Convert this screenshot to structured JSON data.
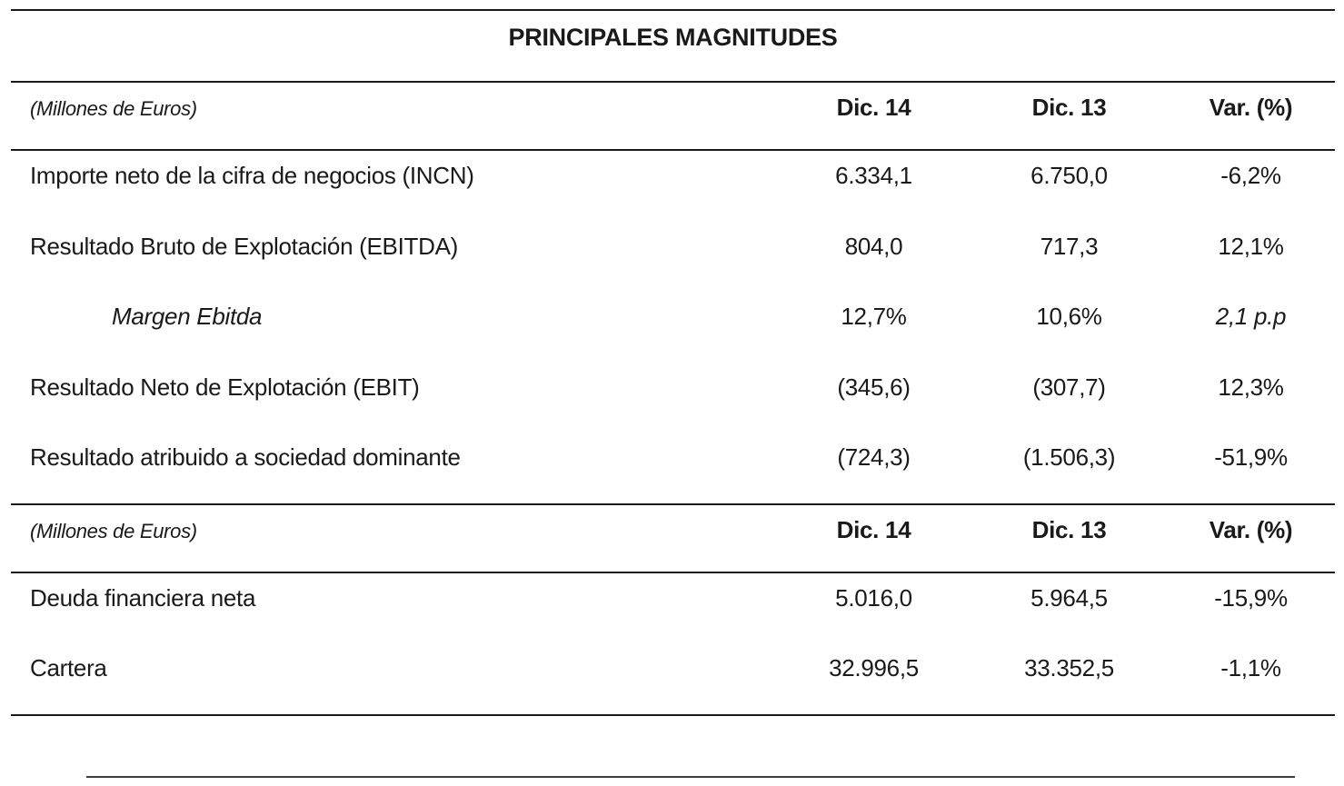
{
  "title": "PRINCIPALES MAGNITUDES",
  "sections": [
    {
      "unit_label": "(Millones de Euros)",
      "columns": [
        "Dic. 14",
        "Dic. 13",
        "Var. (%)"
      ],
      "rows": [
        {
          "label": "Importe neto de la cifra de negocios (INCN)",
          "dic14": "6.334,1",
          "dic13": "6.750,0",
          "var": "-6,2%"
        },
        {
          "label": "Resultado Bruto de Explotación (EBITDA)",
          "dic14": "804,0",
          "dic13": "717,3",
          "var": "12,1%"
        },
        {
          "label": "Margen Ebitda",
          "dic14": "12,7%",
          "dic13": "10,6%",
          "var": "2,1 p.p"
        },
        {
          "label": "Resultado Neto de Explotación (EBIT)",
          "dic14": "(345,6)",
          "dic13": "(307,7)",
          "var": "12,3%"
        },
        {
          "label": "Resultado atribuido a sociedad dominante",
          "dic14": "(724,3)",
          "dic13": "(1.506,3)",
          "var": "-51,9%"
        }
      ]
    },
    {
      "unit_label": "(Millones de Euros)",
      "columns": [
        "Dic. 14",
        "Dic. 13",
        "Var. (%)"
      ],
      "rows": [
        {
          "label": "Deuda financiera neta",
          "dic14": "5.016,0",
          "dic13": "5.964,5",
          "var": "-15,9%"
        },
        {
          "label": "Cartera",
          "dic14": "32.996,5",
          "dic13": "33.352,5",
          "var": "-1,1%"
        }
      ]
    }
  ],
  "colors": {
    "text": "#1a1a1a",
    "rule": "#1a1a1a",
    "bottom_rule": "#3c3c3c",
    "background": "#ffffff"
  }
}
